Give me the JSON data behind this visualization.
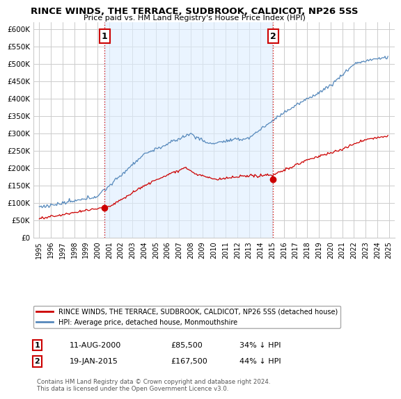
{
  "title": "RINCE WINDS, THE TERRACE, SUDBROOK, CALDICOT, NP26 5SS",
  "subtitle": "Price paid vs. HM Land Registry's House Price Index (HPI)",
  "ylabel_ticks": [
    "£0",
    "£50K",
    "£100K",
    "£150K",
    "£200K",
    "£250K",
    "£300K",
    "£350K",
    "£400K",
    "£450K",
    "£500K",
    "£550K",
    "£600K"
  ],
  "ytick_values": [
    0,
    50000,
    100000,
    150000,
    200000,
    250000,
    300000,
    350000,
    400000,
    450000,
    500000,
    550000,
    600000
  ],
  "ylim": [
    0,
    620000
  ],
  "xlim_start": 1994.5,
  "xlim_end": 2025.5,
  "sale1_x": 2000.61,
  "sale1_y": 85500,
  "sale1_label": "1",
  "sale1_date": "11-AUG-2000",
  "sale1_price": "£85,500",
  "sale1_hpi": "34% ↓ HPI",
  "sale2_x": 2015.05,
  "sale2_y": 167500,
  "sale2_label": "2",
  "sale2_date": "19-JAN-2015",
  "sale2_price": "£167,500",
  "sale2_hpi": "44% ↓ HPI",
  "line_color_red": "#cc0000",
  "line_color_blue": "#5588bb",
  "shade_color": "#ddeeff",
  "grid_color": "#cccccc",
  "bg_color": "#ffffff",
  "legend_label_red": "RINCE WINDS, THE TERRACE, SUDBROOK, CALDICOT, NP26 5SS (detached house)",
  "legend_label_blue": "HPI: Average price, detached house, Monmouthshire",
  "footnote": "Contains HM Land Registry data © Crown copyright and database right 2024.\nThis data is licensed under the Open Government Licence v3.0.",
  "marker_color": "#cc0000",
  "dashed_line_color": "#cc0000"
}
